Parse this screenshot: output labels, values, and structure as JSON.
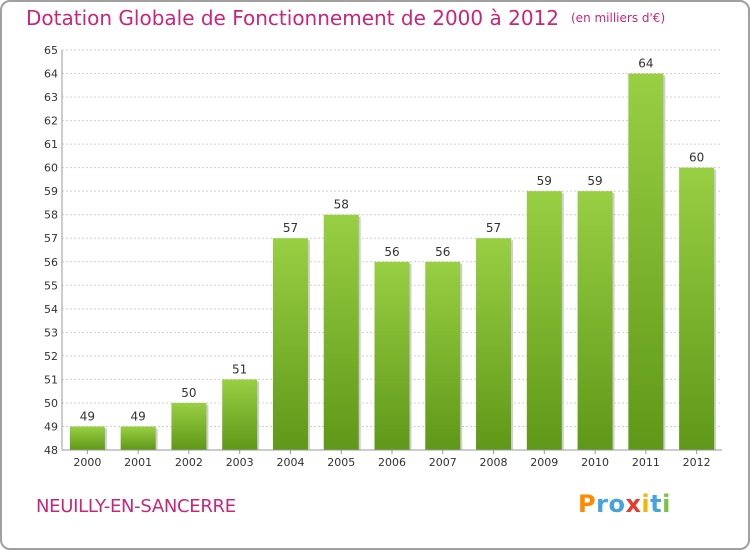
{
  "title": "Dotation Globale de Fonctionnement de 2000 à 2012",
  "unit": "(en milliers d'€)",
  "commune": "NEUILLY-EN-SANCERRE",
  "logo": [
    "P",
    "r",
    "o",
    "x",
    "i",
    "t",
    "i"
  ],
  "colors": {
    "title": "#c8267a",
    "bar_top": "#98cf43",
    "bar_bottom": "#5f9818",
    "grid": "#d0d0d0",
    "logo": [
      "#ff8a00",
      "#45a3e0",
      "#45a3e0",
      "#e63c2e",
      "#f2b705",
      "#45a3e0",
      "#7cc242"
    ]
  },
  "chart_data": {
    "type": "bar",
    "categories": [
      "2000",
      "2001",
      "2002",
      "2003",
      "2004",
      "2005",
      "2006",
      "2007",
      "2008",
      "2009",
      "2010",
      "2011",
      "2012"
    ],
    "values": [
      49,
      49,
      50,
      51,
      57,
      58,
      56,
      56,
      57,
      59,
      59,
      64,
      60
    ],
    "ylim": [
      48,
      65
    ],
    "yticks": [
      48,
      49,
      50,
      51,
      52,
      53,
      54,
      55,
      56,
      57,
      58,
      59,
      60,
      61,
      62,
      63,
      64,
      65
    ],
    "grid": true
  }
}
